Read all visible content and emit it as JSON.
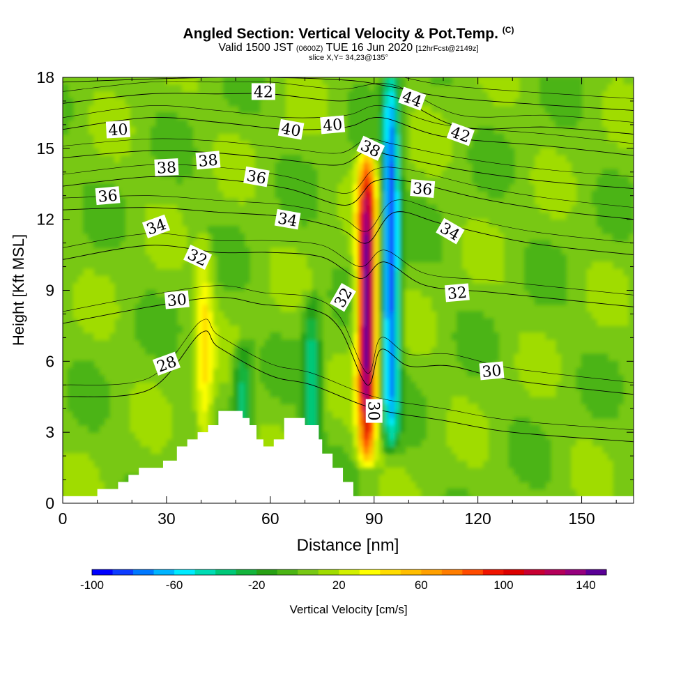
{
  "title": {
    "main": "Angled Section: Vertical Velocity & Pot.Temp.",
    "main_suffix": "(C)",
    "valid_pre": "Valid 1500 JST",
    "valid_zulu": "(0600Z)",
    "valid_date": "TUE 16 Jun 2020",
    "valid_fcst": "[12hrFcst@2149z]",
    "slice": "slice X,Y= 34,23@135°"
  },
  "chart_data": {
    "type": "heatmap",
    "title": "Angled Section: Vertical Velocity & Pot.Temp.",
    "xlabel": "Distance [nm]",
    "ylabel": "Height [Kft MSL]",
    "xlim": [
      0,
      165
    ],
    "ylim": [
      0,
      18
    ],
    "x_ticks": [
      0,
      30,
      60,
      90,
      120,
      150
    ],
    "y_ticks": [
      0,
      3,
      6,
      9,
      12,
      15,
      18
    ],
    "x_tick_labels": [
      "0",
      "30",
      "60",
      "90",
      "120",
      "150"
    ],
    "y_tick_labels": [
      "0",
      "3",
      "6",
      "9",
      "12",
      "15",
      "18"
    ],
    "colorbar": {
      "label": "Vertical Velocity [cm/s]",
      "min": -100,
      "max": 150,
      "step": 10,
      "tick_values": [
        -100,
        -60,
        -20,
        20,
        60,
        100,
        140
      ],
      "tick_labels": [
        "-100",
        "-60",
        "-20",
        "20",
        "60",
        "100",
        "140"
      ],
      "colors": [
        "#0000ff",
        "#0d3cff",
        "#0078ff",
        "#00b4ff",
        "#00ebff",
        "#00dcb4",
        "#00c878",
        "#14b43c",
        "#28a014",
        "#4bb414",
        "#78c814",
        "#a0dc00",
        "#d2f000",
        "#ffff00",
        "#ffdc00",
        "#ffbe00",
        "#ffa000",
        "#ff7d00",
        "#ff4b00",
        "#f01400",
        "#dc0000",
        "#c80032",
        "#b4005a",
        "#96007d",
        "#5a0096"
      ]
    },
    "updrafts": [
      {
        "x": 88,
        "y_bottom": 2.5,
        "y_top": 14,
        "peak": 145
      },
      {
        "x": 41,
        "y_bottom": 2,
        "y_top": 10.5,
        "peak": 35
      }
    ],
    "downdrafts": [
      {
        "x": 95,
        "y_bottom": 3,
        "y_top": 18,
        "peak": -95
      },
      {
        "x": 72,
        "y_bottom": 1.5,
        "y_top": 8,
        "peak": -45
      },
      {
        "x": 52,
        "y_bottom": 3,
        "y_top": 6,
        "peak": -40
      }
    ],
    "terrain": [
      [
        0,
        0.3
      ],
      [
        10,
        0.3
      ],
      [
        10,
        0.6
      ],
      [
        16,
        0.6
      ],
      [
        16,
        0.9
      ],
      [
        19,
        0.9
      ],
      [
        19,
        1.2
      ],
      [
        22,
        1.2
      ],
      [
        22,
        1.5
      ],
      [
        29,
        1.5
      ],
      [
        29,
        1.8
      ],
      [
        33,
        1.8
      ],
      [
        33,
        2.4
      ],
      [
        36,
        2.4
      ],
      [
        36,
        2.7
      ],
      [
        39,
        2.7
      ],
      [
        39,
        3.0
      ],
      [
        42,
        3.0
      ],
      [
        42,
        3.3
      ],
      [
        45,
        3.3
      ],
      [
        45,
        3.9
      ],
      [
        52,
        3.9
      ],
      [
        52,
        3.6
      ],
      [
        54,
        3.6
      ],
      [
        54,
        3.3
      ],
      [
        56,
        3.3
      ],
      [
        56,
        2.7
      ],
      [
        58,
        2.7
      ],
      [
        58,
        2.4
      ],
      [
        61,
        2.4
      ],
      [
        61,
        2.7
      ],
      [
        64,
        2.7
      ],
      [
        64,
        3.6
      ],
      [
        70,
        3.6
      ],
      [
        70,
        3.3
      ],
      [
        74,
        3.3
      ],
      [
        74,
        2.7
      ],
      [
        75,
        2.7
      ],
      [
        75,
        2.1
      ],
      [
        78,
        2.1
      ],
      [
        78,
        1.5
      ],
      [
        81,
        1.5
      ],
      [
        81,
        0.9
      ],
      [
        84,
        0.9
      ],
      [
        84,
        0.3
      ],
      [
        165,
        0.3
      ]
    ],
    "isentropes": [
      {
        "label": "28",
        "points": [
          [
            0,
            4.5
          ],
          [
            25,
            4.8
          ],
          [
            40,
            7.2
          ],
          [
            45,
            6.6
          ],
          [
            60,
            5.4
          ],
          [
            72,
            5.0
          ],
          [
            90,
            4.0
          ],
          [
            110,
            3.5
          ],
          [
            130,
            3.0
          ],
          [
            165,
            2.6
          ]
        ],
        "label_pos": [
          30,
          5.9
        ],
        "label_rot": -20
      },
      {
        "label": "30",
        "points": [
          [
            0,
            7.6
          ],
          [
            25,
            8.3
          ],
          [
            45,
            8.7
          ],
          [
            58,
            8.4
          ],
          [
            72,
            8.2
          ],
          [
            80,
            7.4
          ],
          [
            88,
            5.0
          ],
          [
            92,
            6.5
          ],
          [
            100,
            5.8
          ],
          [
            112,
            5.8
          ],
          [
            130,
            5.2
          ],
          [
            165,
            4.6
          ]
        ],
        "label_pos": [
          33,
          8.6
        ],
        "label_rot": -5,
        "label_pos2": [
          90,
          3.9
        ],
        "label_rot2": 90,
        "label_pos3": [
          124,
          5.6
        ],
        "label_rot3": -5
      },
      {
        "label": "32",
        "points": [
          [
            0,
            10.3
          ],
          [
            25,
            10.9
          ],
          [
            45,
            10.6
          ],
          [
            60,
            10.6
          ],
          [
            75,
            10.4
          ],
          [
            86,
            9.5
          ],
          [
            93,
            10.2
          ],
          [
            105,
            9.2
          ],
          [
            125,
            8.9
          ],
          [
            165,
            8.3
          ]
        ],
        "label_pos": [
          39,
          10.4
        ],
        "label_rot": 25,
        "label_pos2": [
          81,
          8.7
        ],
        "label_rot2": -60,
        "label_pos3": [
          114,
          8.9
        ],
        "label_rot3": -5
      },
      {
        "label": "34",
        "points": [
          [
            0,
            12.4
          ],
          [
            25,
            12.5
          ],
          [
            45,
            12.3
          ],
          [
            65,
            12.1
          ],
          [
            80,
            11.6
          ],
          [
            88,
            11.0
          ],
          [
            96,
            12.3
          ],
          [
            110,
            11.8
          ],
          [
            135,
            11.0
          ],
          [
            165,
            10.5
          ]
        ],
        "label_pos": [
          27,
          11.7
        ],
        "label_rot": -20,
        "label_pos2": [
          65,
          12.0
        ],
        "label_rot2": 10,
        "label_pos3": [
          112,
          11.5
        ],
        "label_rot3": 30
      },
      {
        "label": "36",
        "points": [
          [
            0,
            13.4
          ],
          [
            25,
            13.8
          ],
          [
            45,
            13.7
          ],
          [
            65,
            13.3
          ],
          [
            82,
            12.6
          ],
          [
            90,
            13.6
          ],
          [
            100,
            13.6
          ],
          [
            120,
            12.9
          ],
          [
            140,
            12.4
          ],
          [
            165,
            12.0
          ]
        ],
        "label_pos": [
          13,
          13.0
        ],
        "label_rot": -5,
        "label_pos2": [
          56,
          13.8
        ],
        "label_rot2": 10,
        "label_pos3": [
          104,
          13.3
        ],
        "label_rot3": 5
      },
      {
        "label": "38",
        "points": [
          [
            0,
            14.6
          ],
          [
            25,
            14.9
          ],
          [
            45,
            14.8
          ],
          [
            65,
            14.5
          ],
          [
            80,
            14.3
          ],
          [
            88,
            14.9
          ],
          [
            95,
            14.7
          ],
          [
            115,
            14.1
          ],
          [
            140,
            13.6
          ],
          [
            165,
            13.3
          ]
        ],
        "label_pos": [
          30,
          14.2
        ],
        "label_rot": -3,
        "label_pos2": [
          42,
          14.5
        ],
        "label_rot2": -5,
        "label_pos3": [
          89,
          15.0
        ],
        "label_rot3": 25
      },
      {
        "label": "40",
        "points": [
          [
            0,
            15.8
          ],
          [
            25,
            16.3
          ],
          [
            45,
            16.1
          ],
          [
            65,
            15.8
          ],
          [
            82,
            15.9
          ],
          [
            92,
            16.3
          ],
          [
            110,
            15.5
          ],
          [
            140,
            15.1
          ],
          [
            165,
            14.7
          ]
        ],
        "label_pos": [
          16,
          15.8
        ],
        "label_rot": -3,
        "label_pos2": [
          66,
          15.8
        ],
        "label_rot2": 10,
        "label_pos3": [
          78,
          16.0
        ],
        "label_rot3": -5
      },
      {
        "label": "42",
        "points": [
          [
            0,
            16.9
          ],
          [
            25,
            17.3
          ],
          [
            45,
            17.3
          ],
          [
            60,
            17.3
          ],
          [
            80,
            17.0
          ],
          [
            95,
            17.2
          ],
          [
            115,
            15.9
          ],
          [
            140,
            15.9
          ],
          [
            165,
            15.6
          ]
        ],
        "label_pos": [
          58,
          17.4
        ],
        "label_rot": 0,
        "label_pos2": [
          115,
          15.6
        ],
        "label_rot2": 20
      },
      {
        "label": "44",
        "points": [
          [
            0,
            17.8
          ],
          [
            45,
            18.0
          ],
          [
            80,
            17.9
          ],
          [
            95,
            17.6
          ],
          [
            115,
            17.1
          ],
          [
            165,
            16.6
          ]
        ],
        "label_pos": [
          101,
          17.1
        ],
        "label_rot": 20
      }
    ]
  }
}
